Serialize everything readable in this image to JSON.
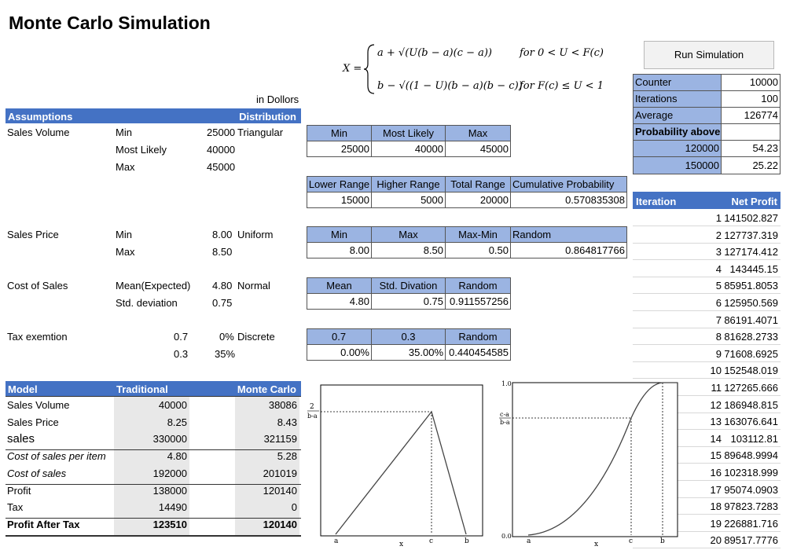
{
  "title": "Monte Carlo Simulation",
  "units_note": "in Dollors",
  "formula": {
    "lhs": "X =",
    "case1": "a + √(U(b − a)(c − a))",
    "case1_cond": "for 0 < U < F(c)",
    "case2": "b − √((1 − U)(b − a)(b − c))",
    "case2_cond": "for F(c) ≤ U < 1"
  },
  "run_button": "Run Simulation",
  "assumptions": {
    "header": "Assumptions",
    "dist_header": "Distribution",
    "sales_volume": {
      "label": "Sales Volume",
      "min_label": "Min",
      "min": "25000",
      "dist": "Triangular",
      "ml_label": "Most Likely",
      "ml": "40000",
      "max_label": "Max",
      "max": "45000"
    },
    "sales_price": {
      "label": "Sales Price",
      "min_label": "Min",
      "min": "8.00",
      "dist": "Uniform",
      "max_label": "Max",
      "max": "8.50"
    },
    "cost_of_sales": {
      "label": "Cost of Sales",
      "mean_label": "Mean(Expected)",
      "mean": "4.80",
      "dist": "Normal",
      "sd_label": "Std. deviation",
      "sd": "0.75"
    },
    "tax": {
      "label": "Tax exemtion",
      "p1": "0.7",
      "v1": "0%",
      "dist": "Discrete",
      "p2": "0.3",
      "v2": "35%"
    }
  },
  "tri_table": {
    "headers": [
      "Min",
      "Most Likely",
      "Max"
    ],
    "values": [
      "25000",
      "40000",
      "45000"
    ]
  },
  "range_table": {
    "headers": [
      "Lower Range",
      "Higher Range",
      "Total Range",
      "Cumulative Probability"
    ],
    "values": [
      "15000",
      "5000",
      "20000",
      "0.570835308"
    ]
  },
  "uni_table": {
    "headers": [
      "Min",
      "Max",
      "Max-Min",
      "Random"
    ],
    "values": [
      "8.00",
      "8.50",
      "0.50",
      "0.864817766"
    ]
  },
  "norm_table": {
    "headers": [
      "Mean",
      "Std. Divation",
      "Random"
    ],
    "values": [
      "4.80",
      "0.75",
      "0.911557256"
    ]
  },
  "disc_table": {
    "headers": [
      "0.7",
      "0.3",
      "Random"
    ],
    "values": [
      "0.00%",
      "35.00%",
      "0.440454585"
    ]
  },
  "summary": {
    "counter_label": "Counter",
    "counter": "10000",
    "iterations_label": "Iterations",
    "iterations": "100",
    "average_label": "Average",
    "average": "126774",
    "prob_label": "Probability above",
    "p1_threshold": "120000",
    "p1_value": "54.23",
    "p2_threshold": "150000",
    "p2_value": "25.22"
  },
  "iterations": {
    "header_iter": "Iteration",
    "header_profit": "Net Profit",
    "rows": [
      [
        "1",
        "141502.827"
      ],
      [
        "2",
        "127737.319"
      ],
      [
        "3",
        "127174.412"
      ],
      [
        "4",
        "143445.15"
      ],
      [
        "5",
        "85951.8053"
      ],
      [
        "6",
        "125950.569"
      ],
      [
        "7",
        "86191.4071"
      ],
      [
        "8",
        "81628.2733"
      ],
      [
        "9",
        "71608.6925"
      ],
      [
        "10",
        "152548.019"
      ],
      [
        "11",
        "127265.666"
      ],
      [
        "12",
        "186948.815"
      ],
      [
        "13",
        "163076.641"
      ],
      [
        "14",
        "103112.81"
      ],
      [
        "15",
        "89648.9994"
      ],
      [
        "16",
        "102318.999"
      ],
      [
        "17",
        "95074.0903"
      ],
      [
        "18",
        "97823.7283"
      ],
      [
        "19",
        "226881.716"
      ],
      [
        "20",
        "89517.7776"
      ]
    ]
  },
  "model": {
    "header": "Model",
    "col1": "Traditional",
    "col2": "Monte Carlo",
    "rows": [
      {
        "label": "Sales Volume",
        "trad": "40000",
        "mc": "38086"
      },
      {
        "label": "Sales Price",
        "trad": "8.25",
        "mc": "8.43"
      },
      {
        "label": "sales",
        "trad": "330000",
        "mc": "321159"
      },
      {
        "label": "Cost of sales per item",
        "trad": "4.80",
        "mc": "5.28"
      },
      {
        "label": "Cost of sales",
        "trad": "192000",
        "mc": "201019"
      },
      {
        "label": "Profit",
        "trad": "138000",
        "mc": "120140"
      },
      {
        "label": "Tax",
        "trad": "14490",
        "mc": "0"
      },
      {
        "label": "Profit After Tax",
        "trad": "123510",
        "mc": "120140"
      }
    ]
  },
  "pdf_chart": {
    "y_label_num": "2",
    "y_label_den": "b-a",
    "x_a": "a",
    "x_c": "c",
    "x_b": "b",
    "x_axis": "x"
  },
  "cdf_chart": {
    "y_top": "1.0",
    "y_bottom": "0.0",
    "y_label_num": "c-a",
    "y_label_den": "b-a",
    "x_a": "a",
    "x_c": "c",
    "x_b": "b",
    "x_axis": "x"
  }
}
